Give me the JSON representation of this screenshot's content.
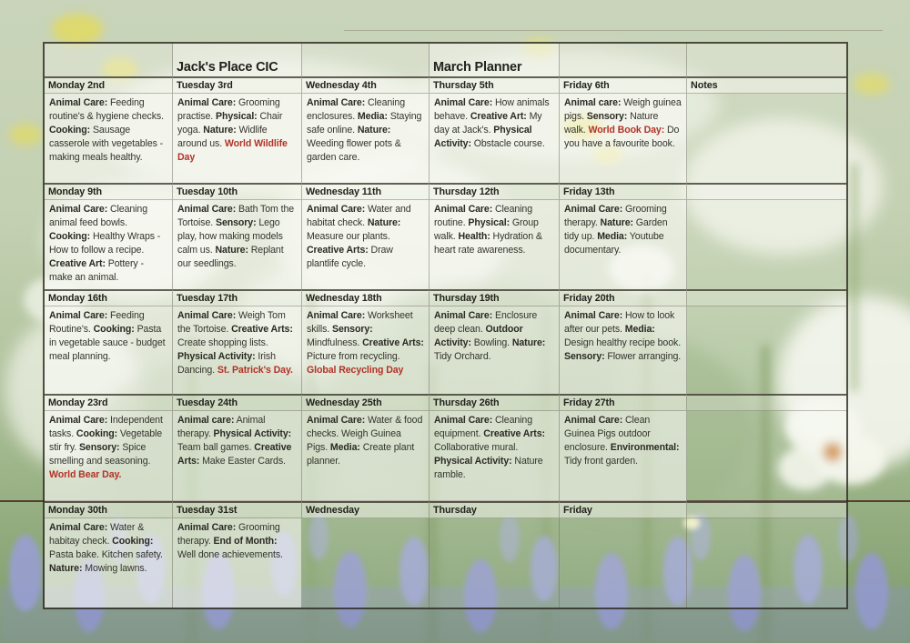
{
  "colors": {
    "accent_red": "#b23226",
    "ink": "#2a2a23",
    "divider_line": "#4a2b22"
  },
  "planner": {
    "title_cells": [
      "",
      "Jack's Place CIC",
      "",
      "March Planner",
      "",
      ""
    ],
    "weeks": [
      {
        "headers": [
          "Monday 2nd",
          "Tuesday 3rd",
          "Wednesday 4th",
          "Thursday 5th",
          "Friday 6th",
          "Notes"
        ],
        "cells": [
          [
            [
              "b",
              "Animal Care:"
            ],
            [
              "n",
              " Feeding routine's & hygiene checks.  "
            ],
            [
              "b",
              "Cooking:"
            ],
            [
              "n",
              "  Sausage casserole with vegetables - making meals healthy."
            ]
          ],
          [
            [
              "b",
              "Animal Care:"
            ],
            [
              "n",
              " Grooming practise.  "
            ],
            [
              "b",
              "Physical:"
            ],
            [
              "n",
              " Chair yoga.  "
            ],
            [
              "b",
              "Nature:"
            ],
            [
              "n",
              " Widlife around us.  "
            ],
            [
              "rb",
              "World Wildlife Day"
            ]
          ],
          [
            [
              "b",
              "Animal Care:"
            ],
            [
              "n",
              " Cleaning enclosures.  "
            ],
            [
              "b",
              "Media:"
            ],
            [
              "n",
              " Staying safe online.  "
            ],
            [
              "b",
              "Nature:"
            ],
            [
              "n",
              " Weeding flower pots & garden care."
            ]
          ],
          [
            [
              "b",
              "Animal Care:"
            ],
            [
              "n",
              " How animals behave.  "
            ],
            [
              "b",
              "Creative Art:"
            ],
            [
              "n",
              " My day at Jack's.  "
            ],
            [
              "b",
              "Physical Activity:"
            ],
            [
              "n",
              " Obstacle course."
            ]
          ],
          [
            [
              "b",
              "Animal care:"
            ],
            [
              "n",
              " Weigh guinea pigs.  "
            ],
            [
              "b",
              "Sensory:"
            ],
            [
              "n",
              "  Nature walk.  "
            ],
            [
              "rb",
              "World Book Day:"
            ],
            [
              "n",
              " Do you have a favourite book."
            ]
          ],
          []
        ]
      },
      {
        "headers": [
          "Monday 9th",
          "Tuesday 10th",
          "Wednesday 11th",
          "Thursday 12th",
          "Friday 13th",
          ""
        ],
        "cells": [
          [
            [
              "b",
              "Animal Care:"
            ],
            [
              "n",
              " Cleaning animal feed bowls.  "
            ],
            [
              "b",
              "Cooking:"
            ],
            [
              "n",
              "  Healthy Wraps - How to follow a recipe.  "
            ],
            [
              "b",
              "Creative Art:"
            ],
            [
              "n",
              " Pottery - make an animal."
            ]
          ],
          [
            [
              "b",
              "Animal Care:"
            ],
            [
              "n",
              " Bath Tom the Tortoise. "
            ],
            [
              "b",
              "Sensory:"
            ],
            [
              "n",
              " Lego play, how making models calm us. "
            ],
            [
              "b",
              "Nature:"
            ],
            [
              "n",
              " Replant our seedlings."
            ]
          ],
          [
            [
              "b",
              "Animal Care:"
            ],
            [
              "n",
              " Water and habitat check. "
            ],
            [
              "b",
              "Nature:"
            ],
            [
              "n",
              " Measure our plants.  "
            ],
            [
              "b",
              "Creative Arts:"
            ],
            [
              "n",
              " Draw plantlife cycle."
            ]
          ],
          [
            [
              "b",
              "Animal Care:"
            ],
            [
              "n",
              " Cleaning routine.  "
            ],
            [
              "b",
              "Physical:"
            ],
            [
              "n",
              " Group walk.  "
            ],
            [
              "b",
              "Health:"
            ],
            [
              "n",
              " Hydration & heart rate awareness."
            ]
          ],
          [
            [
              "b",
              "Animal Care:"
            ],
            [
              "n",
              " Grooming therapy.  "
            ],
            [
              "b",
              "Nature:"
            ],
            [
              "n",
              " Garden tidy up.  "
            ],
            [
              "b",
              "Media:"
            ],
            [
              "n",
              " Youtube documentary."
            ]
          ],
          []
        ]
      },
      {
        "headers": [
          "Monday 16th",
          "Tuesday 17th",
          "Wednesday 18th",
          "Thursday 19th",
          "Friday 20th",
          ""
        ],
        "cells": [
          [
            [
              "b",
              "Animal Care:"
            ],
            [
              "n",
              " Feeding Routine's.  "
            ],
            [
              "b",
              "Cooking:"
            ],
            [
              "n",
              " Pasta in vegetable sauce - budget meal planning."
            ]
          ],
          [
            [
              "b",
              "Animal Care:"
            ],
            [
              "n",
              " Weigh Tom the Tortoise.  "
            ],
            [
              "b",
              "Creative Arts:"
            ],
            [
              "n",
              " Create shopping lists.  "
            ],
            [
              "b",
              "Physical Activity:"
            ],
            [
              "n",
              " Irish Dancing.  "
            ],
            [
              "rb",
              "St. Patrick's Day."
            ]
          ],
          [
            [
              "b",
              "Animal Care:"
            ],
            [
              "n",
              " Worksheet skills.  "
            ],
            [
              "b",
              "Sensory:"
            ],
            [
              "n",
              " Mindfulness.  "
            ],
            [
              "b",
              "Creative Arts:"
            ],
            [
              "n",
              " Picture from recycling.  "
            ],
            [
              "rb",
              "Global Recycling Day"
            ]
          ],
          [
            [
              "b",
              "Animal Care:"
            ],
            [
              "n",
              " Enclosure deep clean.  "
            ],
            [
              "b",
              "Outdoor Activity:"
            ],
            [
              "n",
              " Bowling.  "
            ],
            [
              "b",
              "Nature:"
            ],
            [
              "n",
              " Tidy Orchard."
            ]
          ],
          [
            [
              "b",
              "Animal Care:"
            ],
            [
              "n",
              " How to look after our pets.  "
            ],
            [
              "b",
              "Media:"
            ],
            [
              "n",
              " Design healthy recipe book.  "
            ],
            [
              "b",
              "Sensory:"
            ],
            [
              "n",
              " Flower arranging."
            ]
          ],
          []
        ]
      },
      {
        "headers": [
          "Monday 23rd",
          "Tuesday 24th",
          "Wednesday 25th",
          "Thursday 26th",
          "Friday 27th",
          ""
        ],
        "cells": [
          [
            [
              "b",
              "Animal Care:"
            ],
            [
              "n",
              " Independent tasks.  "
            ],
            [
              "b",
              "Cooking:"
            ],
            [
              "n",
              " Vegetable stir fry.  "
            ],
            [
              "b",
              "Sensory:"
            ],
            [
              "n",
              " Spice smelling and seasoning.  "
            ],
            [
              "rb",
              "World Bear Day."
            ]
          ],
          [
            [
              "b",
              "Animal care:"
            ],
            [
              "n",
              " Animal therapy.  "
            ],
            [
              "b",
              "Physical Activity:"
            ],
            [
              "n",
              "  Team ball games.  "
            ],
            [
              "b",
              "Creative Arts:"
            ],
            [
              "n",
              " Make Easter Cards."
            ]
          ],
          [
            [
              "b",
              "Animal Care:"
            ],
            [
              "n",
              " Water & food checks. Weigh Guinea Pigs.  "
            ],
            [
              "b",
              "Media:"
            ],
            [
              "n",
              " Create plant planner."
            ]
          ],
          [
            [
              "b",
              "Animal Care:"
            ],
            [
              "n",
              " Cleaning equipment.  "
            ],
            [
              "b",
              "Creative Arts:"
            ],
            [
              "n",
              " Collaborative mural.  "
            ],
            [
              "b",
              "Physical Activity:"
            ],
            [
              "n",
              " Nature ramble."
            ]
          ],
          [
            [
              "b",
              "Animal Care:"
            ],
            [
              "n",
              " Clean Guinea Pigs outdoor enclosure.  "
            ],
            [
              "b",
              "Environmental:"
            ],
            [
              "n",
              " Tidy front garden."
            ]
          ],
          []
        ]
      },
      {
        "headers": [
          "Monday 30th",
          "Tuesday 31st",
          "Wednesday",
          "Thursday",
          "Friday",
          ""
        ],
        "cells": [
          [
            [
              "b",
              "Animal Care:"
            ],
            [
              "n",
              " Water & habitay check.  "
            ],
            [
              "b",
              "Cooking:"
            ],
            [
              "n",
              "  Pasta bake.  Kitchen safety.  "
            ],
            [
              "b",
              "Nature:"
            ],
            [
              "n",
              " Mowing lawns."
            ]
          ],
          [
            [
              "b",
              "Animal Care:"
            ],
            [
              "n",
              " Grooming therapy.   "
            ],
            [
              "b",
              "End of Month:"
            ],
            [
              "n",
              "  Well done achievements."
            ]
          ],
          [],
          [],
          [],
          []
        ]
      }
    ]
  }
}
